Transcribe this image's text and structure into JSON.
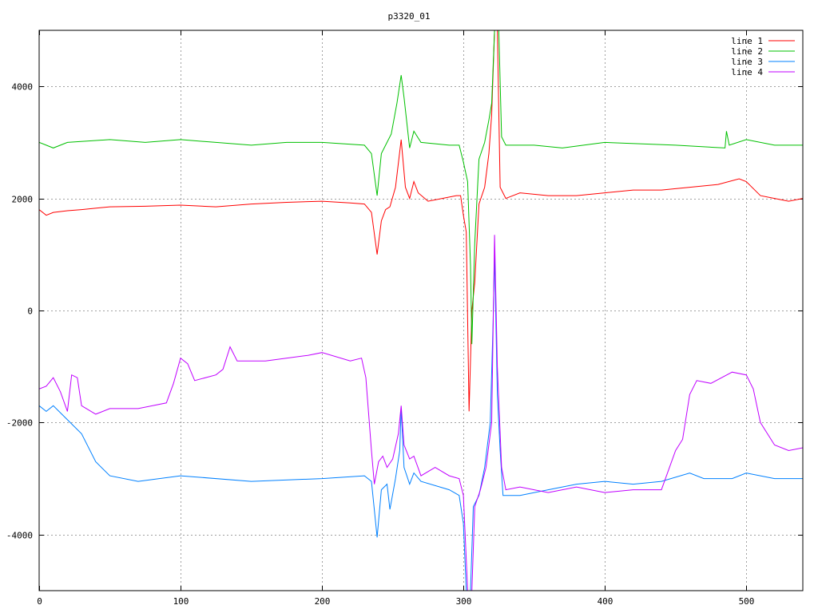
{
  "chart_data": {
    "type": "line",
    "title": "p3320_01",
    "xlabel": "",
    "ylabel": "",
    "xlim": [
      0,
      540
    ],
    "ylim": [
      -5000,
      5000
    ],
    "xticks": [
      0,
      100,
      200,
      300,
      400,
      500
    ],
    "yticks": [
      -4000,
      -2000,
      0,
      2000,
      4000
    ],
    "grid": true,
    "legend": "top-right",
    "series": [
      {
        "name": "line 1",
        "color": "#ff0000",
        "points": [
          [
            0,
            1800
          ],
          [
            5,
            1700
          ],
          [
            10,
            1750
          ],
          [
            20,
            1780
          ],
          [
            30,
            1800
          ],
          [
            50,
            1850
          ],
          [
            75,
            1860
          ],
          [
            100,
            1880
          ],
          [
            125,
            1850
          ],
          [
            150,
            1900
          ],
          [
            175,
            1930
          ],
          [
            200,
            1950
          ],
          [
            220,
            1920
          ],
          [
            230,
            1900
          ],
          [
            235,
            1750
          ],
          [
            239,
            1000
          ],
          [
            242,
            1600
          ],
          [
            245,
            1800
          ],
          [
            248,
            1850
          ],
          [
            252,
            2200
          ],
          [
            256,
            3050
          ],
          [
            259,
            2200
          ],
          [
            262,
            2000
          ],
          [
            265,
            2300
          ],
          [
            268,
            2100
          ],
          [
            275,
            1950
          ],
          [
            285,
            2000
          ],
          [
            295,
            2050
          ],
          [
            298,
            2050
          ],
          [
            300,
            1700
          ],
          [
            302,
            1400
          ],
          [
            304,
            -1800
          ],
          [
            306,
            0
          ],
          [
            308,
            500
          ],
          [
            311,
            1900
          ],
          [
            315,
            2200
          ],
          [
            318,
            2800
          ],
          [
            320,
            3500
          ],
          [
            322,
            5000
          ],
          [
            324,
            5000
          ],
          [
            326,
            2200
          ],
          [
            330,
            2000
          ],
          [
            340,
            2100
          ],
          [
            360,
            2050
          ],
          [
            380,
            2050
          ],
          [
            400,
            2100
          ],
          [
            420,
            2150
          ],
          [
            440,
            2150
          ],
          [
            460,
            2200
          ],
          [
            480,
            2250
          ],
          [
            495,
            2350
          ],
          [
            500,
            2300
          ],
          [
            510,
            2050
          ],
          [
            520,
            2000
          ],
          [
            530,
            1950
          ],
          [
            540,
            2000
          ]
        ]
      },
      {
        "name": "line 2",
        "color": "#00c000",
        "points": [
          [
            0,
            3000
          ],
          [
            5,
            2950
          ],
          [
            10,
            2900
          ],
          [
            20,
            3000
          ],
          [
            50,
            3050
          ],
          [
            75,
            3000
          ],
          [
            100,
            3050
          ],
          [
            125,
            3000
          ],
          [
            150,
            2950
          ],
          [
            175,
            3000
          ],
          [
            200,
            3000
          ],
          [
            230,
            2950
          ],
          [
            235,
            2800
          ],
          [
            239,
            2050
          ],
          [
            242,
            2800
          ],
          [
            245,
            2950
          ],
          [
            249,
            3150
          ],
          [
            253,
            3700
          ],
          [
            256,
            4200
          ],
          [
            258,
            3800
          ],
          [
            262,
            2900
          ],
          [
            265,
            3200
          ],
          [
            270,
            3000
          ],
          [
            290,
            2950
          ],
          [
            297,
            2950
          ],
          [
            300,
            2650
          ],
          [
            303,
            2300
          ],
          [
            305,
            800
          ],
          [
            306,
            -600
          ],
          [
            308,
            1200
          ],
          [
            311,
            2700
          ],
          [
            315,
            3000
          ],
          [
            318,
            3400
          ],
          [
            320,
            3700
          ],
          [
            322,
            5000
          ],
          [
            325,
            5000
          ],
          [
            327,
            3100
          ],
          [
            330,
            2950
          ],
          [
            350,
            2950
          ],
          [
            370,
            2900
          ],
          [
            400,
            3000
          ],
          [
            450,
            2950
          ],
          [
            485,
            2900
          ],
          [
            486,
            3200
          ],
          [
            488,
            2950
          ],
          [
            500,
            3050
          ],
          [
            520,
            2950
          ],
          [
            540,
            2950
          ]
        ]
      },
      {
        "name": "line 3",
        "color": "#0080ff",
        "points": [
          [
            0,
            -1700
          ],
          [
            5,
            -1800
          ],
          [
            10,
            -1700
          ],
          [
            20,
            -1950
          ],
          [
            30,
            -2200
          ],
          [
            40,
            -2700
          ],
          [
            50,
            -2950
          ],
          [
            70,
            -3050
          ],
          [
            100,
            -2950
          ],
          [
            150,
            -3050
          ],
          [
            200,
            -3000
          ],
          [
            230,
            -2950
          ],
          [
            235,
            -3050
          ],
          [
            239,
            -4050
          ],
          [
            242,
            -3200
          ],
          [
            246,
            -3100
          ],
          [
            248,
            -3550
          ],
          [
            252,
            -3000
          ],
          [
            255,
            -2500
          ],
          [
            256,
            -1750
          ],
          [
            258,
            -2800
          ],
          [
            262,
            -3100
          ],
          [
            265,
            -2900
          ],
          [
            270,
            -3050
          ],
          [
            290,
            -3200
          ],
          [
            297,
            -3300
          ],
          [
            300,
            -3800
          ],
          [
            302,
            -5000
          ],
          [
            305,
            -5000
          ],
          [
            307,
            -3500
          ],
          [
            311,
            -3300
          ],
          [
            315,
            -2800
          ],
          [
            319,
            -2000
          ],
          [
            321,
            -200
          ],
          [
            322,
            1000
          ],
          [
            324,
            -1500
          ],
          [
            326,
            -2500
          ],
          [
            328,
            -3300
          ],
          [
            340,
            -3300
          ],
          [
            360,
            -3200
          ],
          [
            380,
            -3100
          ],
          [
            400,
            -3050
          ],
          [
            420,
            -3100
          ],
          [
            440,
            -3050
          ],
          [
            460,
            -2900
          ],
          [
            470,
            -3000
          ],
          [
            490,
            -3000
          ],
          [
            500,
            -2900
          ],
          [
            520,
            -3000
          ],
          [
            540,
            -3000
          ]
        ]
      },
      {
        "name": "line 4",
        "color": "#c000ff",
        "points": [
          [
            0,
            -1400
          ],
          [
            5,
            -1350
          ],
          [
            10,
            -1200
          ],
          [
            15,
            -1450
          ],
          [
            20,
            -1800
          ],
          [
            23,
            -1150
          ],
          [
            27,
            -1200
          ],
          [
            30,
            -1700
          ],
          [
            40,
            -1850
          ],
          [
            50,
            -1750
          ],
          [
            70,
            -1750
          ],
          [
            90,
            -1650
          ],
          [
            95,
            -1300
          ],
          [
            100,
            -850
          ],
          [
            105,
            -950
          ],
          [
            110,
            -1250
          ],
          [
            125,
            -1150
          ],
          [
            130,
            -1050
          ],
          [
            135,
            -650
          ],
          [
            140,
            -900
          ],
          [
            160,
            -900
          ],
          [
            190,
            -800
          ],
          [
            200,
            -750
          ],
          [
            220,
            -900
          ],
          [
            228,
            -850
          ],
          [
            231,
            -1200
          ],
          [
            235,
            -2500
          ],
          [
            237,
            -3100
          ],
          [
            240,
            -2700
          ],
          [
            243,
            -2600
          ],
          [
            246,
            -2800
          ],
          [
            250,
            -2650
          ],
          [
            254,
            -2200
          ],
          [
            256,
            -1700
          ],
          [
            258,
            -2400
          ],
          [
            262,
            -2650
          ],
          [
            265,
            -2600
          ],
          [
            270,
            -2950
          ],
          [
            280,
            -2800
          ],
          [
            290,
            -2950
          ],
          [
            297,
            -3000
          ],
          [
            300,
            -3300
          ],
          [
            303,
            -5000
          ],
          [
            306,
            -5000
          ],
          [
            308,
            -3500
          ],
          [
            312,
            -3200
          ],
          [
            316,
            -2800
          ],
          [
            320,
            -2000
          ],
          [
            322,
            1350
          ],
          [
            324,
            -1000
          ],
          [
            327,
            -2800
          ],
          [
            330,
            -3200
          ],
          [
            340,
            -3150
          ],
          [
            360,
            -3250
          ],
          [
            380,
            -3150
          ],
          [
            400,
            -3250
          ],
          [
            420,
            -3200
          ],
          [
            440,
            -3200
          ],
          [
            450,
            -2500
          ],
          [
            455,
            -2300
          ],
          [
            460,
            -1500
          ],
          [
            465,
            -1250
          ],
          [
            475,
            -1300
          ],
          [
            490,
            -1100
          ],
          [
            500,
            -1150
          ],
          [
            505,
            -1400
          ],
          [
            510,
            -2000
          ],
          [
            520,
            -2400
          ],
          [
            530,
            -2500
          ],
          [
            540,
            -2450
          ]
        ]
      }
    ]
  }
}
